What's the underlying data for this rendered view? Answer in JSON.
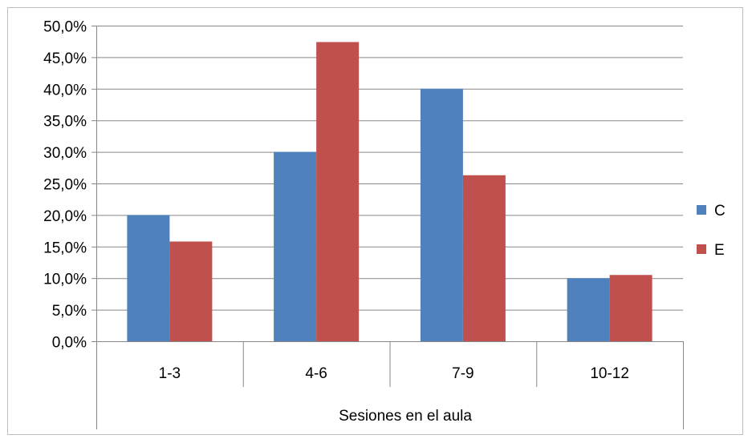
{
  "chart_data": {
    "type": "bar",
    "categories": [
      "1-3",
      "4-6",
      "7-9",
      "10-12"
    ],
    "series": [
      {
        "name": "C",
        "values": [
          20.0,
          30.0,
          40.0,
          10.0
        ],
        "color": "#4f81bd"
      },
      {
        "name": "E",
        "values": [
          15.8,
          47.4,
          26.3,
          10.5
        ],
        "color": "#c0504d"
      }
    ],
    "title": "",
    "xlabel": "Sesiones en el aula",
    "ylabel": "",
    "ylim": [
      0,
      50
    ],
    "ytick_step": 5,
    "ytick_labels": [
      "0,0%",
      "5,0%",
      "10,0%",
      "15,0%",
      "20,0%",
      "25,0%",
      "30,0%",
      "35,0%",
      "40,0%",
      "45,0%",
      "50,0%"
    ],
    "grid": true,
    "legend_position": "right",
    "colors": {
      "grid": "#878787",
      "axis": "#878787"
    }
  }
}
